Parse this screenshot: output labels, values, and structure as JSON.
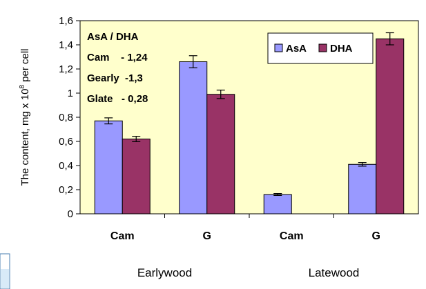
{
  "chart_data": {
    "type": "bar",
    "ylabel_prefix": "The content, mg x 10",
    "ylabel_exp": "8",
    "ylabel_suffix": " per cell",
    "ylim": [
      0,
      1.6
    ],
    "yticks": [
      "0",
      "0,2",
      "0,4",
      "0,6",
      "0,8",
      "1",
      "1,2",
      "1,4",
      "1,6"
    ],
    "categories": [
      "Cam",
      "G",
      "Cam",
      "G"
    ],
    "groups": [
      {
        "label": "Earlywood",
        "categories": [
          0,
          1
        ]
      },
      {
        "label": "Latewood",
        "categories": [
          2,
          3
        ]
      }
    ],
    "series": [
      {
        "name": "AsA",
        "color": "#9999ff",
        "values": [
          0.77,
          1.26,
          0.16,
          0.41
        ],
        "errors": [
          0.025,
          0.05,
          0.008,
          0.015
        ]
      },
      {
        "name": "DHA",
        "color": "#993366",
        "values": [
          0.62,
          0.99,
          0.0,
          1.45
        ],
        "errors": [
          0.022,
          0.035,
          0.0,
          0.05
        ]
      }
    ],
    "annotation": [
      "AsA / DHA",
      "Cam    - 1,24",
      "Gearly  -1,3",
      "Glate   - 0,28"
    ],
    "legend_position": "top-right",
    "plot_background": "#ffffcc",
    "grid": false
  }
}
